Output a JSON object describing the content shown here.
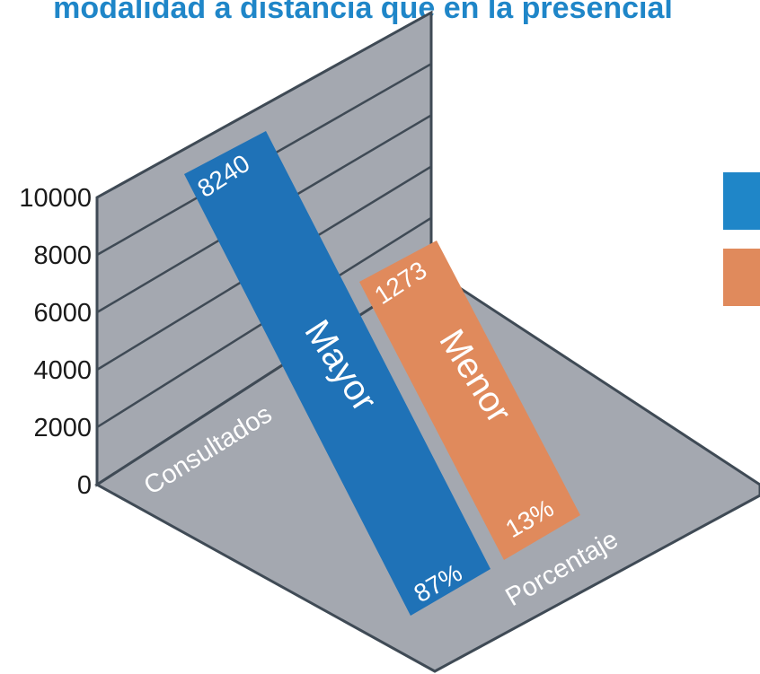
{
  "chart_data": {
    "type": "bar",
    "title": "modalidad a distancia que en la presencial",
    "categories": [
      "Mayor",
      "Menor"
    ],
    "values": [
      8240,
      1273
    ],
    "percentages": [
      "87%",
      "13%"
    ],
    "value_labels": [
      "8240",
      "1273"
    ],
    "xlabel": "Consultados",
    "zlabel": "Porcentaje",
    "ylim": [
      0,
      10000
    ],
    "yticks": [
      0,
      2000,
      4000,
      6000,
      8000,
      10000
    ],
    "ytick_labels": [
      "0",
      "2000",
      "4000",
      "6000",
      "8000",
      "10000"
    ],
    "colors": {
      "Mayor": "#1f72b7",
      "Menor": "#e08a5c",
      "title": "#1f86c8",
      "wall": "#a4a8b0",
      "edge": "#3f4a55"
    },
    "legend_colors": [
      "#1f86c8",
      "#e08a5c"
    ],
    "legend_position": "right",
    "grid": true,
    "style": "3d-perspective"
  }
}
